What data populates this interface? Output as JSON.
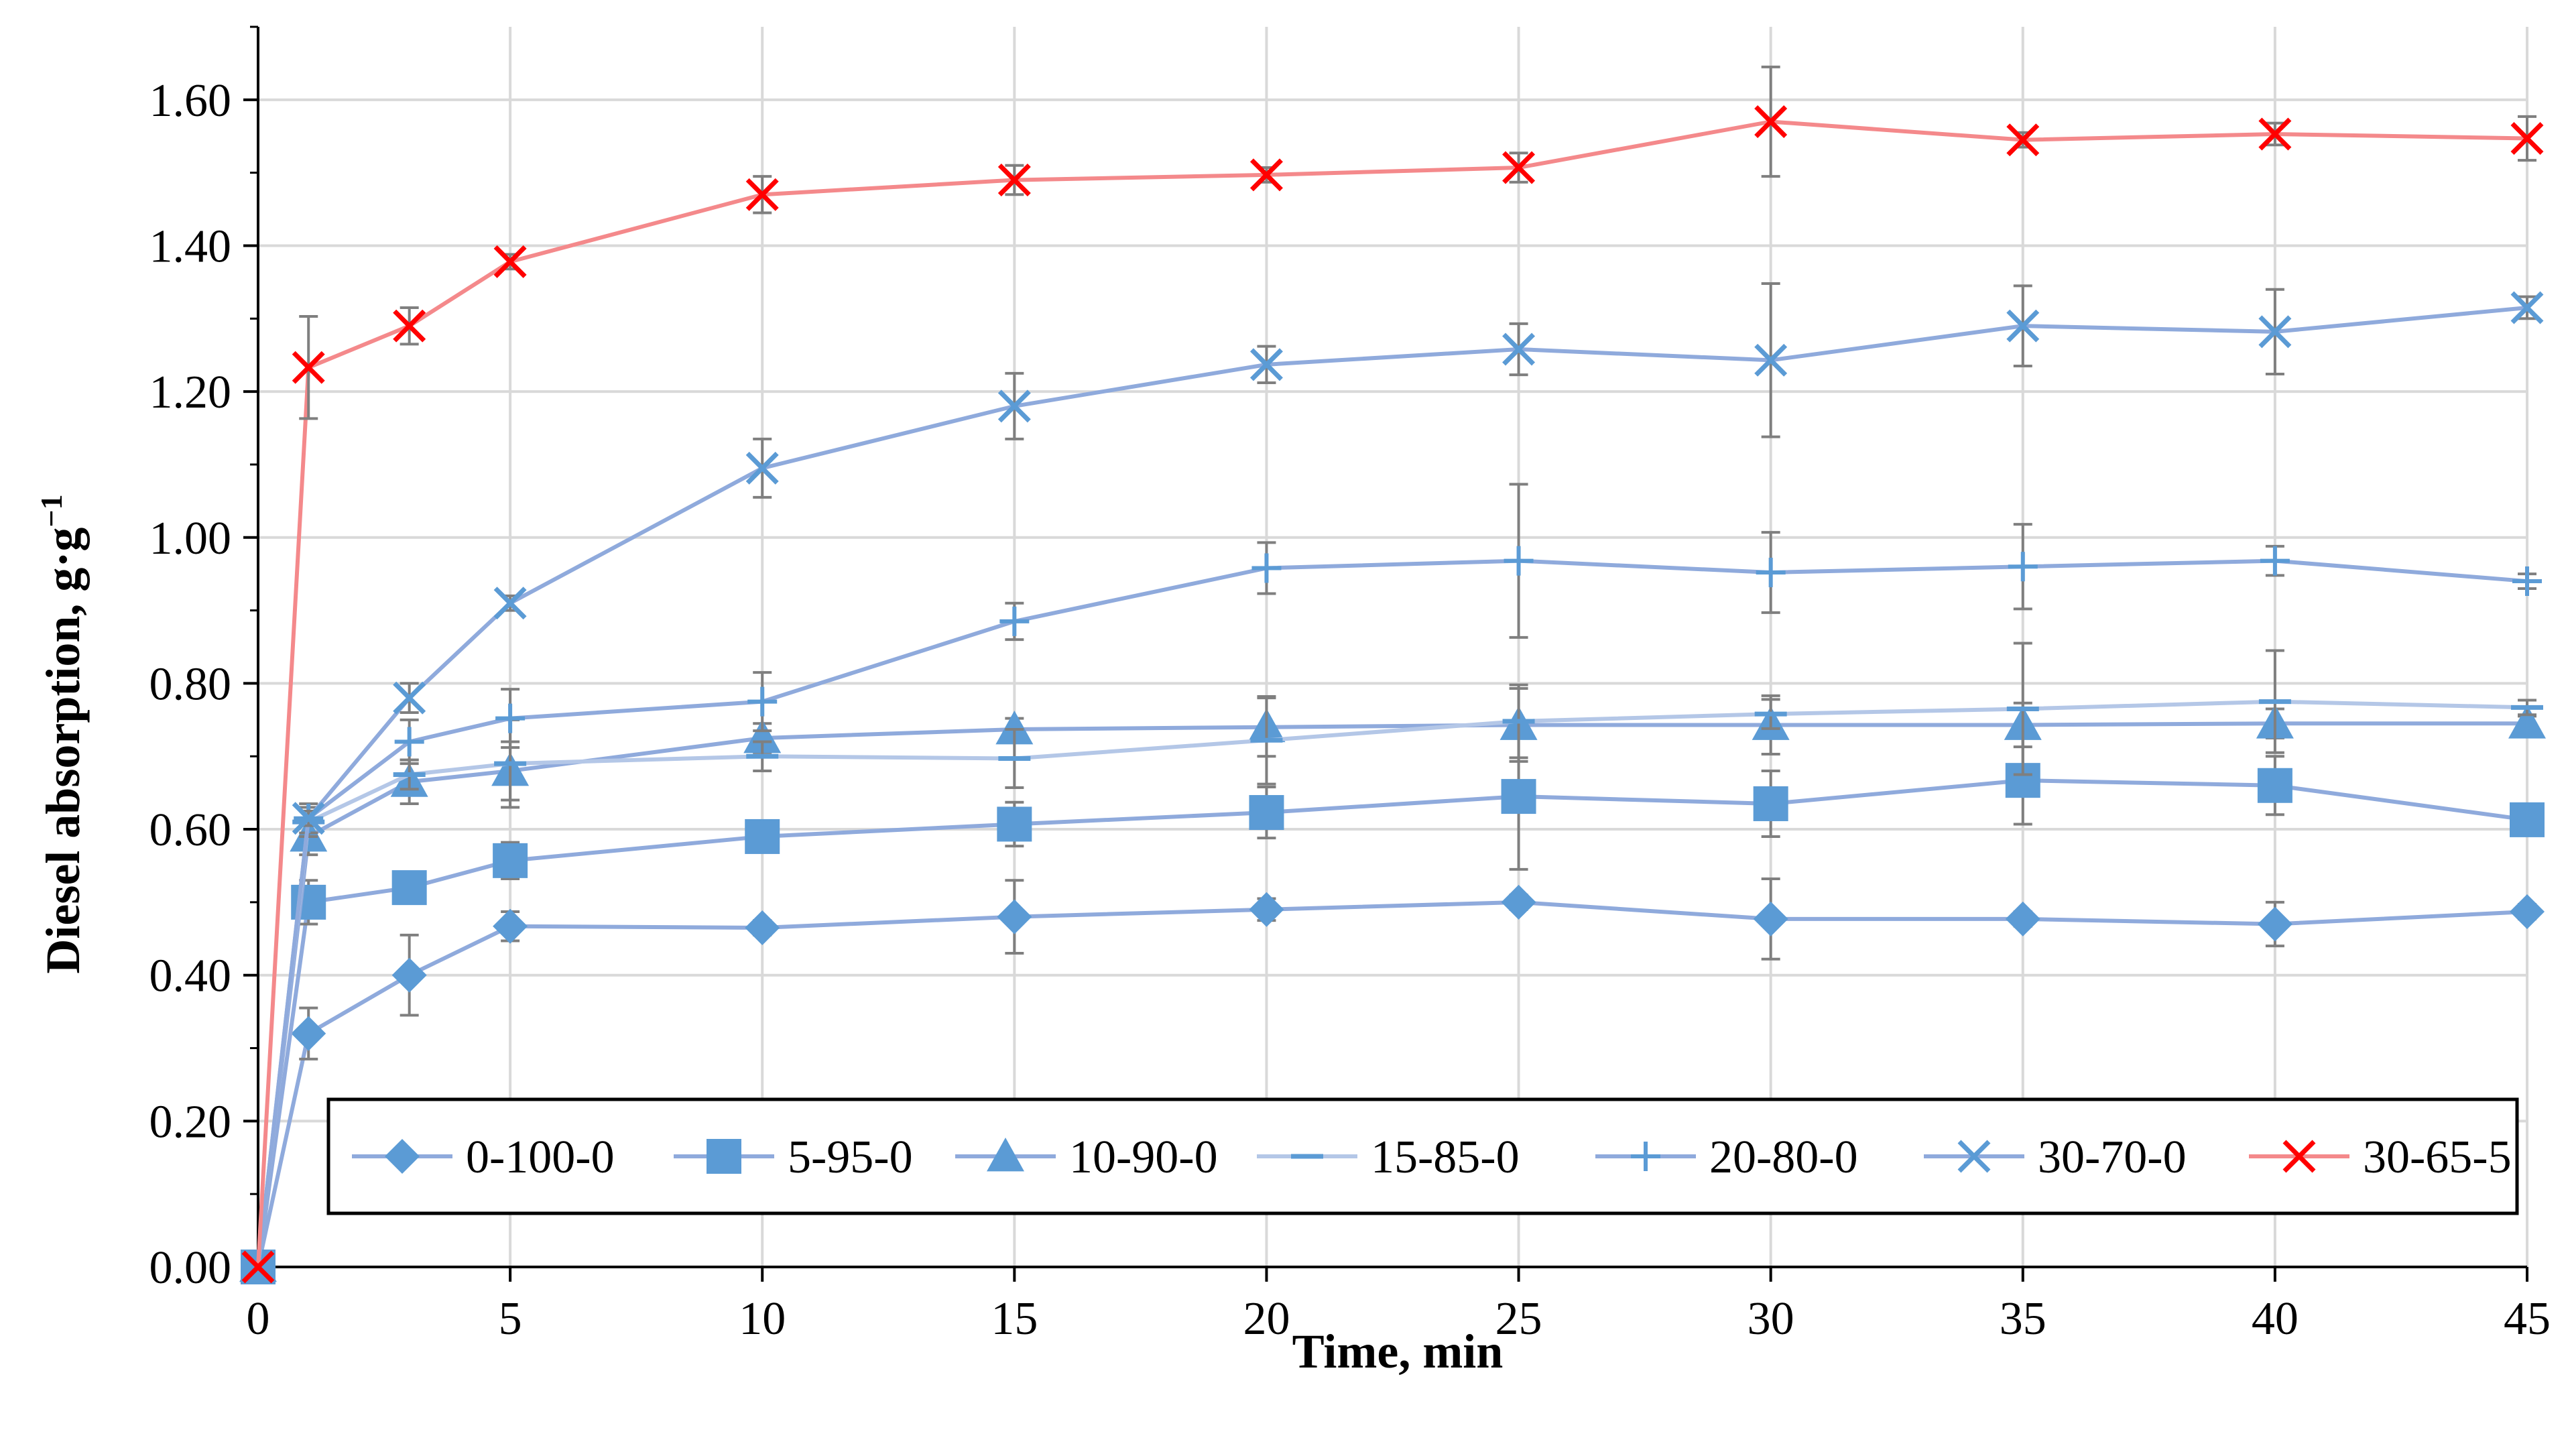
{
  "chart_data": {
    "type": "line",
    "title": "",
    "xlabel": "Time, min",
    "ylabel": "Diesel absorption, g·g",
    "ylabel_sup": "−1",
    "x": [
      0,
      1,
      3,
      5,
      10,
      15,
      20,
      25,
      30,
      35,
      40,
      45
    ],
    "xlim": [
      0,
      45
    ],
    "ylim": [
      0,
      1.7
    ],
    "xticks": [
      0,
      5,
      10,
      15,
      20,
      25,
      30,
      35,
      40,
      45
    ],
    "xtick_labels": [
      "0",
      "5",
      "10",
      "15",
      "20",
      "25",
      "30",
      "35",
      "40",
      "45"
    ],
    "yticks": [
      0,
      0.2,
      0.4,
      0.6,
      0.8,
      1.0,
      1.2,
      1.4,
      1.6
    ],
    "ytick_labels": [
      "0.00",
      "0.20",
      "0.40",
      "0.60",
      "0.80",
      "1.00",
      "1.20",
      "1.40",
      "1.60"
    ],
    "grid": true,
    "legend_position": "bottom",
    "series": [
      {
        "name": "0-100-0",
        "marker": "diamond",
        "color": "#5b9bd5",
        "line_color": "#8faadc",
        "values": [
          0,
          0.32,
          0.4,
          0.467,
          0.465,
          0.48,
          0.49,
          0.5,
          0.477,
          0.477,
          0.47,
          0.487
        ],
        "errors": [
          0,
          0.035,
          0.055,
          0.02,
          0.01,
          0.05,
          0.015,
          0.01,
          0.055,
          0.01,
          0.03,
          0.01
        ]
      },
      {
        "name": "5-95-0",
        "marker": "square",
        "color": "#5b9bd5",
        "line_color": "#8faadc",
        "values": [
          0,
          0.5,
          0.52,
          0.557,
          0.59,
          0.607,
          0.623,
          0.645,
          0.635,
          0.667,
          0.66,
          0.613
        ],
        "errors": [
          0,
          0.03,
          0.015,
          0.025,
          0.02,
          0.03,
          0.035,
          0.1,
          0.045,
          0.06,
          0.04,
          0.015
        ]
      },
      {
        "name": "10-90-0",
        "marker": "triangle",
        "color": "#5b9bd5",
        "line_color": "#8faadc",
        "values": [
          0,
          0.59,
          0.665,
          0.68,
          0.725,
          0.737,
          0.74,
          0.743,
          0.743,
          0.743,
          0.745,
          0.745
        ],
        "errors": [
          0,
          0.025,
          0.03,
          0.04,
          0.02,
          0.015,
          0.04,
          0.05,
          0.04,
          0.03,
          0.02,
          0.01
        ]
      },
      {
        "name": "15-85-0",
        "marker": "dash",
        "color": "#5b9bd5",
        "line_color": "#b4c7e7",
        "values": [
          0,
          0.61,
          0.675,
          0.69,
          0.7,
          0.697,
          0.722,
          0.748,
          0.758,
          0.765,
          0.775,
          0.767
        ],
        "errors": [
          0,
          0.02,
          0.02,
          0.06,
          0.02,
          0.04,
          0.06,
          0.05,
          0.02,
          0.09,
          0.07,
          0.01
        ]
      },
      {
        "name": "20-80-0",
        "marker": "plus",
        "color": "#5b9bd5",
        "line_color": "#8faadc",
        "values": [
          0,
          0.615,
          0.72,
          0.752,
          0.775,
          0.885,
          0.958,
          0.968,
          0.952,
          0.96,
          0.968,
          0.94
        ],
        "errors": [
          0,
          0.02,
          0.03,
          0.04,
          0.04,
          0.025,
          0.035,
          0.105,
          0.055,
          0.058,
          0.02,
          0.01
        ]
      },
      {
        "name": "30-70-0",
        "marker": "x",
        "color": "#5b9bd5",
        "line_color": "#8faadc",
        "values": [
          0,
          0.615,
          0.78,
          0.91,
          1.095,
          1.18,
          1.237,
          1.258,
          1.243,
          1.29,
          1.282,
          1.315
        ],
        "errors": [
          0,
          0.01,
          0.02,
          0.01,
          0.04,
          0.045,
          0.025,
          0.035,
          0.105,
          0.055,
          0.058,
          0.015
        ]
      },
      {
        "name": "30-65-5",
        "marker": "x",
        "color": "#ff0000",
        "line_color": "#f4898b",
        "values": [
          0,
          1.233,
          1.29,
          1.378,
          1.47,
          1.49,
          1.497,
          1.507,
          1.57,
          1.545,
          1.553,
          1.547
        ],
        "errors": [
          0,
          0.07,
          0.025,
          0.01,
          0.025,
          0.02,
          0.01,
          0.02,
          0.075,
          0.01,
          0.015,
          0.03
        ]
      }
    ]
  }
}
